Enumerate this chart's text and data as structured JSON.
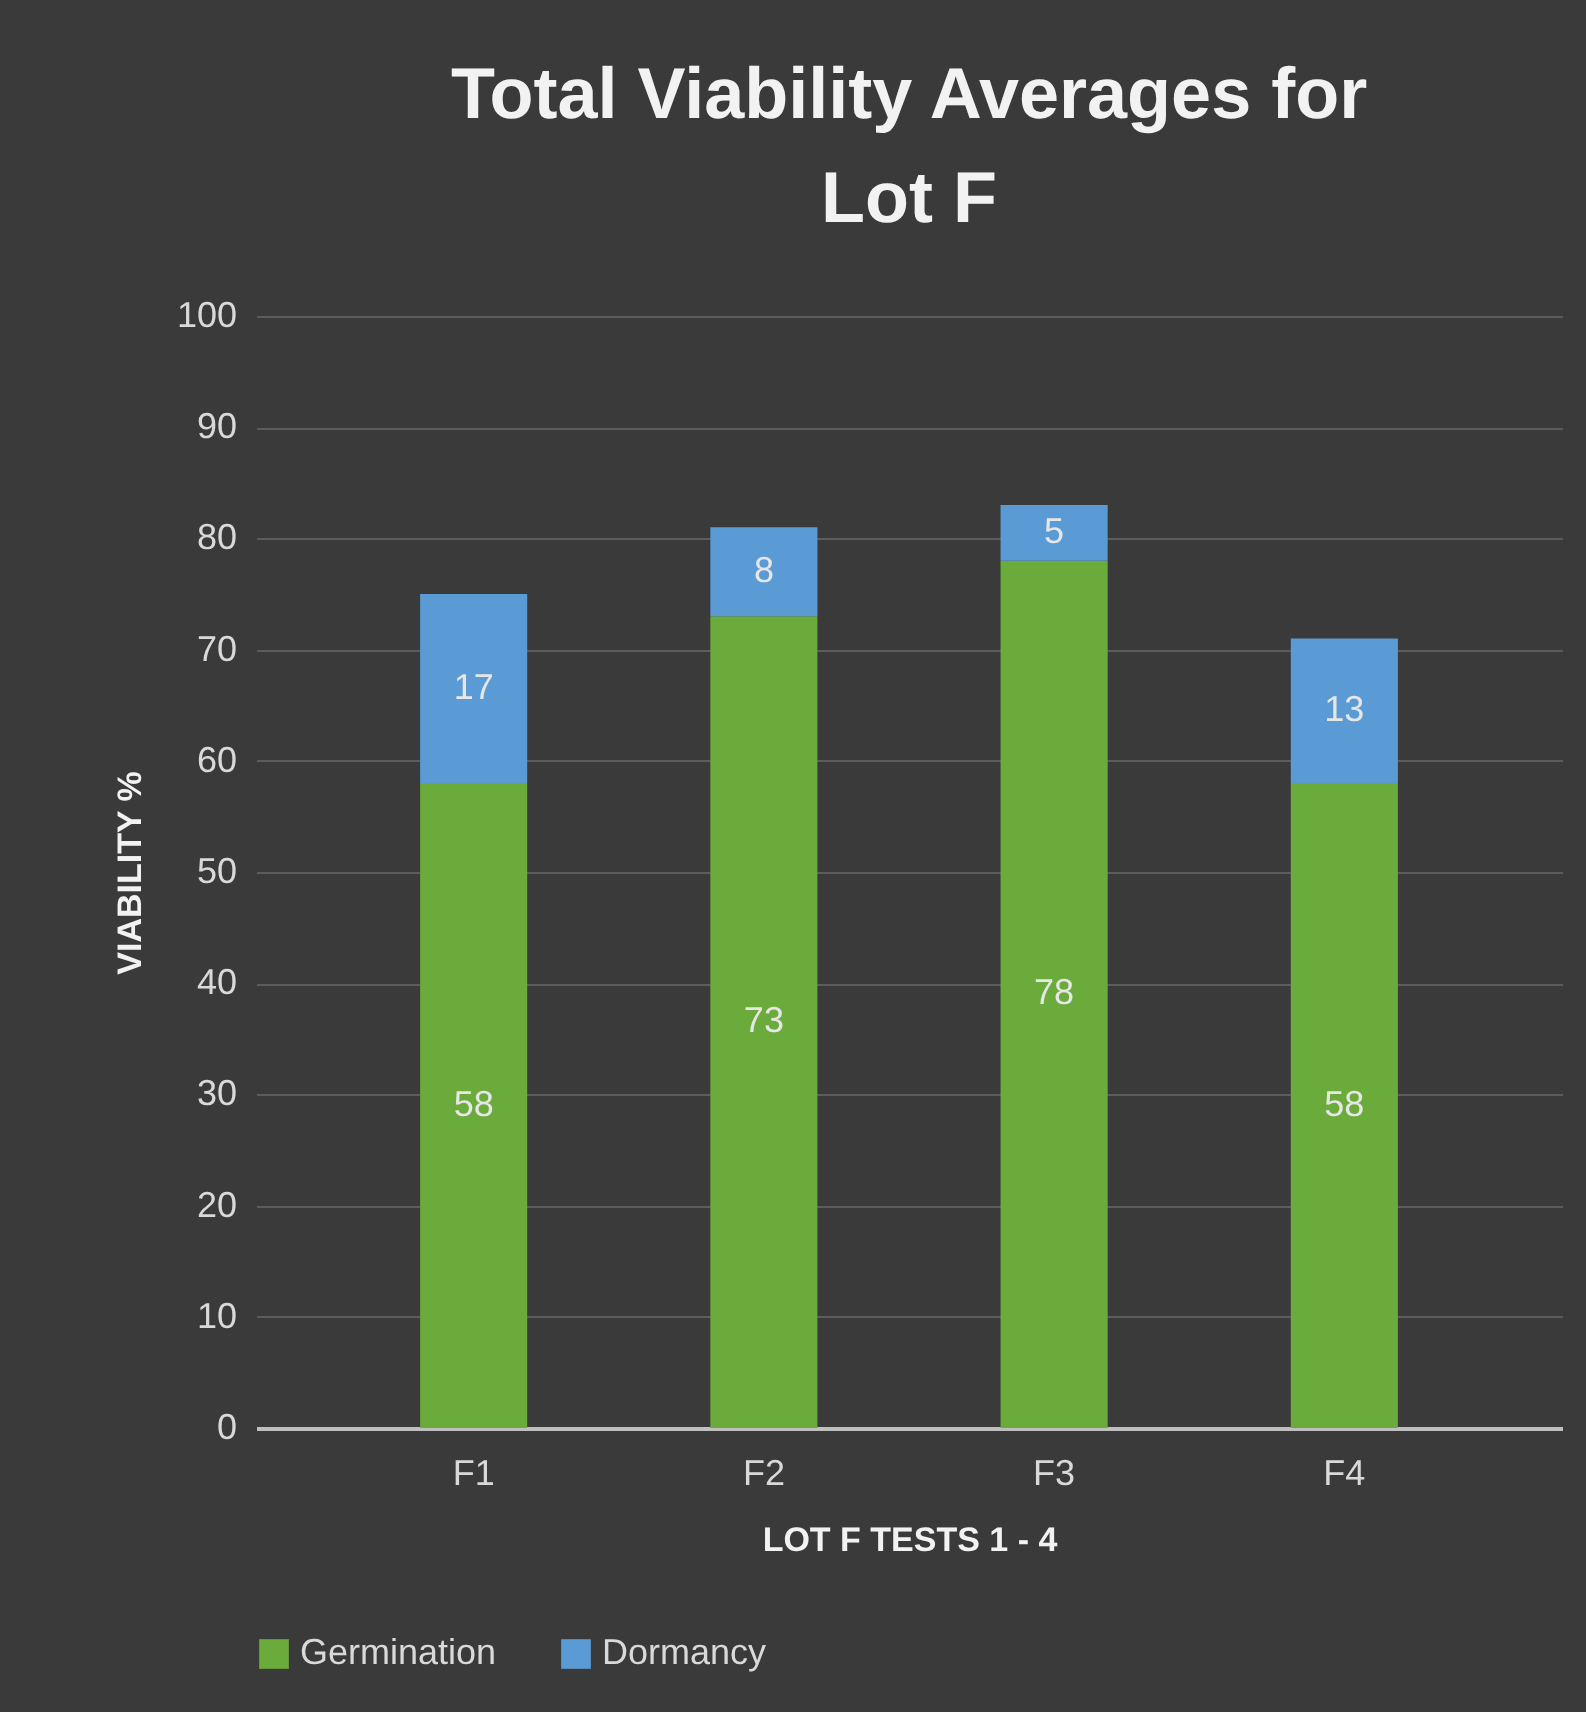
{
  "chart_data": {
    "type": "bar",
    "title": "Total Viability Averages for Lot F",
    "xlabel": "LOT F TESTS 1 - 4",
    "ylabel": "VIABILITY %",
    "categories": [
      "F1",
      "F2",
      "F3",
      "F4"
    ],
    "series": [
      {
        "name": "Germination",
        "color": "#6aab3c",
        "values": [
          58,
          73,
          78,
          58
        ]
      },
      {
        "name": "Dormancy",
        "color": "#5b9bd5",
        "values": [
          17,
          8,
          5,
          13
        ]
      }
    ],
    "stacked": true,
    "data_labels": true,
    "ylim": [
      0,
      100
    ],
    "yticks": [
      0,
      10,
      20,
      30,
      40,
      50,
      60,
      70,
      80,
      90,
      100
    ],
    "grid": "y",
    "legend": "bottom"
  }
}
